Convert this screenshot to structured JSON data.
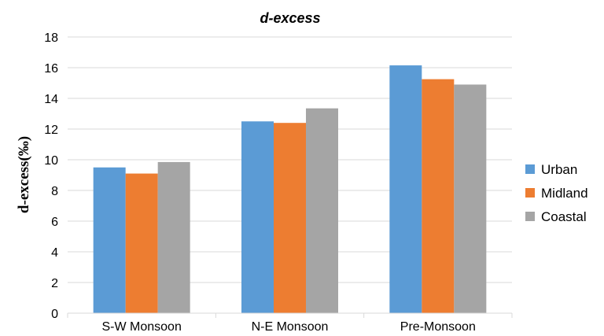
{
  "chart_data": {
    "type": "bar",
    "title": "d-excess",
    "xlabel": "",
    "ylabel": "d-excess(‰)",
    "categories": [
      "S-W Monsoon",
      "N-E Monsoon",
      "Pre-Monsoon"
    ],
    "series": [
      {
        "name": "Urban",
        "values": [
          9.5,
          12.5,
          16.15
        ],
        "color": "#5B9BD5"
      },
      {
        "name": "Midland",
        "values": [
          9.1,
          12.4,
          15.25
        ],
        "color": "#ED7D31"
      },
      {
        "name": "Coastal",
        "values": [
          9.85,
          13.35,
          14.9
        ],
        "color": "#A5A5A5"
      }
    ],
    "ylim": [
      0,
      18
    ],
    "yticks": [
      "0",
      "2",
      "4",
      "6",
      "8",
      "10",
      "12",
      "14",
      "16",
      "18"
    ],
    "grid": true,
    "legend": "right"
  }
}
